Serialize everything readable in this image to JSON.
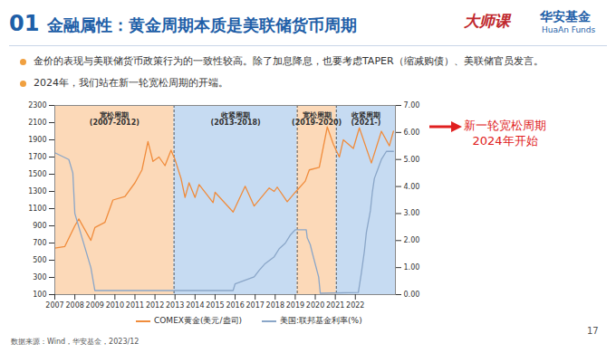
{
  "header": {
    "section": "01",
    "title": "金融属性：黄金周期本质是美联储货币周期",
    "logo": "大师课",
    "brand": "华安基金",
    "brand_en": "HuaAn Funds",
    "page": "17"
  },
  "bullets": [
    "金价的表现与美联储货币政策行为的一致性较高。除了加息降息，也要考虑TAPER（缩减购债）、美联储官员发言。",
    "2024年，我们站在新一轮宽松周期的开端。"
  ],
  "annotation": [
    "新一轮宽松周期",
    "2024年开始"
  ],
  "source": "数据来源：Wind，华安基金，2023/12",
  "chart_data": {
    "type": "line",
    "xlim": [
      2007,
      2024
    ],
    "xticks": [
      2007,
      2008,
      2009,
      2010,
      2011,
      2012,
      2013,
      2014,
      2015,
      2016,
      2017,
      2018,
      2019,
      2020,
      2021,
      2022
    ],
    "ylim": [
      100,
      2300
    ],
    "yticks": [
      100,
      300,
      500,
      700,
      900,
      1100,
      1300,
      1500,
      1700,
      1900,
      2100,
      2300
    ],
    "y2lim": [
      0,
      7
    ],
    "y2ticks": [
      {
        "value": 0,
        "label": "0.00"
      },
      {
        "value": 1,
        "label": "1.00"
      },
      {
        "value": 2,
        "label": "2.00"
      },
      {
        "value": 3,
        "label": "3.00"
      },
      {
        "value": 4,
        "label": "4.00"
      },
      {
        "value": 5,
        "label": "5.00"
      },
      {
        "value": 6,
        "label": "6.00"
      },
      {
        "value": 7,
        "label": "7.00"
      }
    ],
    "grid": false,
    "legend": "bottom",
    "periods": [
      {
        "label": "宽松周期",
        "years": "(2007-2012)",
        "start": 2007,
        "end": 2012.95,
        "color": "#fcd9b8"
      },
      {
        "label": "收紧周期",
        "years": "(2013-2018)",
        "start": 2012.95,
        "end": 2019.1,
        "color": "#c6dbf2"
      },
      {
        "label": "宽松周期",
        "years": "(2019-2020)",
        "start": 2019.1,
        "end": 2021.05,
        "color": "#fcd9b8"
      },
      {
        "label": "收紧周期",
        "years": "(2021-)",
        "start": 2021.05,
        "end": 2024,
        "color": "#c6dbf2"
      }
    ],
    "series": [
      {
        "name": "COMEX黄金(美元/盎司)",
        "color": "#f08c3c",
        "x": [
          2007.0,
          2007.5,
          2008.0,
          2008.2,
          2008.8,
          2009.0,
          2009.5,
          2009.9,
          2010.5,
          2011.0,
          2011.35,
          2011.65,
          2011.9,
          2012.2,
          2012.5,
          2012.8,
          2013.0,
          2013.3,
          2013.5,
          2013.7,
          2014.0,
          2014.2,
          2014.9,
          2015.0,
          2015.9,
          2016.5,
          2016.95,
          2017.7,
          2017.95,
          2018.1,
          2018.6,
          2019.0,
          2019.5,
          2019.7,
          2020.2,
          2020.6,
          2020.9,
          2021.2,
          2021.4,
          2021.9,
          2022.2,
          2022.8,
          2023.3,
          2023.7,
          2023.9
        ],
        "values": [
          640,
          660,
          900,
          980,
          730,
          880,
          940,
          1200,
          1240,
          1400,
          1550,
          1880,
          1650,
          1700,
          1600,
          1780,
          1670,
          1450,
          1230,
          1400,
          1230,
          1380,
          1170,
          1290,
          1060,
          1360,
          1130,
          1340,
          1300,
          1350,
          1180,
          1290,
          1420,
          1550,
          1580,
          2050,
          1850,
          1700,
          1900,
          1800,
          2040,
          1630,
          2000,
          1830,
          2000
        ]
      },
      {
        "name": "美国:联邦基金利率(%)",
        "color": "#8aa6c8",
        "axis": "y2",
        "x": [
          2007.0,
          2007.7,
          2007.9,
          2008.0,
          2008.3,
          2008.8,
          2009.0,
          2015.9,
          2016.0,
          2016.95,
          2017.2,
          2017.5,
          2017.95,
          2018.2,
          2018.5,
          2018.75,
          2019.0,
          2019.55,
          2019.6,
          2019.75,
          2019.85,
          2020.17,
          2020.25,
          2022.15,
          2022.3,
          2022.45,
          2022.55,
          2022.75,
          2022.85,
          2022.95,
          2023.1,
          2023.3,
          2023.55,
          2023.9
        ],
        "values": [
          5.25,
          5.0,
          4.5,
          3.0,
          2.25,
          1.0,
          0.15,
          0.15,
          0.4,
          0.66,
          0.9,
          1.15,
          1.4,
          1.7,
          1.9,
          2.2,
          2.4,
          2.4,
          2.1,
          1.85,
          1.55,
          0.65,
          0.05,
          0.08,
          0.8,
          1.6,
          2.3,
          3.1,
          3.8,
          4.3,
          4.6,
          5.0,
          5.3,
          5.3
        ]
      }
    ]
  }
}
